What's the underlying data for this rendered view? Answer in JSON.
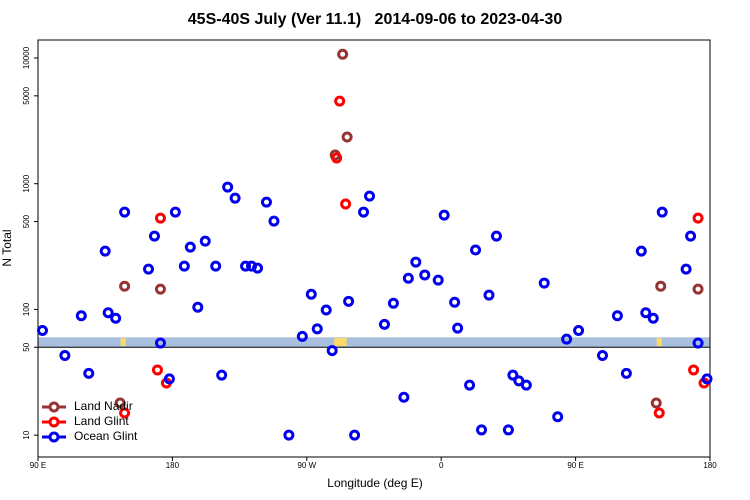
{
  "chart_data": {
    "type": "scatter",
    "title": "45S-40S July (Ver 11.1)   2014-09-06 to 2023-04-30",
    "x_label": "Longitude (deg E)",
    "y_label": "N Total",
    "log_y": true,
    "legend": "bottom-left",
    "xlim": [
      90,
      540
    ],
    "ylim": [
      6.7,
      13900
    ],
    "xticks": [
      {
        "value": 90,
        "label": "90 E"
      },
      180,
      {
        "value": 270,
        "label": "90 W"
      },
      {
        "value": 360,
        "label": "0"
      },
      {
        "value": 450,
        "label": "90 E"
      },
      {
        "value": 540,
        "label": "180"
      }
    ],
    "yticks": [
      10,
      50,
      100,
      500,
      1000,
      5000,
      10000
    ],
    "band": {
      "range": [
        50,
        60
      ],
      "color": "#a9bfe0"
    },
    "hline": 50,
    "markers": {
      "color": "#ffd966",
      "x": [
        147,
        290,
        292,
        295,
        506
      ],
      "values": [
        55,
        55,
        55,
        55,
        55
      ]
    },
    "series": [
      {
        "name": "Land Nadir",
        "color": "#993333",
        "x": [
          145,
          148,
          172,
          289,
          294,
          297,
          504,
          507,
          532
        ],
        "values": [
          18,
          153,
          145,
          1690,
          10700,
          2350,
          18,
          153,
          145
        ]
      },
      {
        "name": "Land Glint",
        "color": "#ff0000",
        "x": [
          148,
          170,
          172,
          176,
          290,
          292,
          296,
          506,
          529,
          532,
          536
        ],
        "values": [
          15,
          33,
          532,
          26,
          1600,
          4540,
          689,
          15,
          33,
          532,
          26
        ]
      },
      {
        "name": "Ocean Glint",
        "color": "#0000ee",
        "x": [
          93,
          108,
          119,
          124,
          135,
          137,
          142,
          148,
          164,
          168,
          172,
          178,
          182,
          188,
          192,
          197,
          202,
          209,
          213,
          217,
          222,
          229,
          233,
          237,
          243,
          248,
          258,
          267,
          273,
          277,
          283,
          287,
          298,
          302,
          308,
          312,
          322,
          328,
          335,
          338,
          343,
          349,
          358,
          362,
          369,
          371,
          379,
          383,
          387,
          392,
          397,
          405,
          408,
          412,
          417,
          429,
          438,
          444,
          452,
          468,
          478,
          484,
          494,
          497,
          502,
          508,
          524,
          527,
          532,
          538
        ],
        "values": [
          68,
          43,
          89,
          31,
          291,
          94,
          85,
          594,
          209,
          383,
          54,
          28,
          594,
          221,
          313,
          104,
          349,
          221,
          30,
          940,
          767,
          221,
          221,
          213,
          713,
          504,
          10,
          61,
          132,
          70,
          99,
          47,
          116,
          10,
          594,
          796,
          76,
          112,
          20,
          177,
          238,
          188,
          171,
          562,
          114,
          71,
          25,
          297,
          11,
          130,
          383,
          11,
          30,
          27,
          25,
          162,
          14,
          58,
          68,
          43,
          89,
          31,
          291,
          94,
          85,
          594,
          209,
          383,
          54,
          28
        ]
      }
    ]
  }
}
